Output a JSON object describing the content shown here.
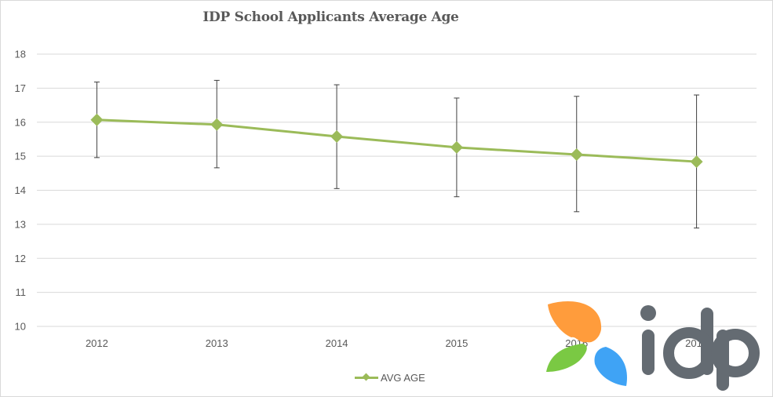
{
  "chart_data": {
    "type": "line",
    "title": "IDP School Applicants Average Age",
    "xlabel": "",
    "ylabel": "",
    "categories": [
      "2012",
      "2013",
      "2014",
      "2015",
      "2016",
      "2017"
    ],
    "series": [
      {
        "name": "AVG AGE",
        "color": "#9bbb59",
        "marker": "diamond",
        "values": [
          16.07,
          15.93,
          15.58,
          15.26,
          15.05,
          14.84
        ],
        "error_low": [
          14.96,
          14.66,
          14.05,
          13.81,
          13.37,
          12.89
        ],
        "error_high": [
          17.18,
          17.23,
          17.1,
          16.71,
          16.76,
          16.8
        ]
      }
    ],
    "ylim": [
      10,
      18
    ],
    "yticks": [
      "10",
      "11",
      "12",
      "13",
      "14",
      "15",
      "16",
      "17",
      "18"
    ],
    "grid": true,
    "legend_position": "bottom"
  },
  "legend": {
    "label": "AVG AGE"
  },
  "logo": {
    "text": "idp",
    "colors": {
      "orange": "#ff9c3c",
      "green": "#7ac943",
      "blue": "#3fa3f5",
      "text": "#646b72"
    }
  }
}
